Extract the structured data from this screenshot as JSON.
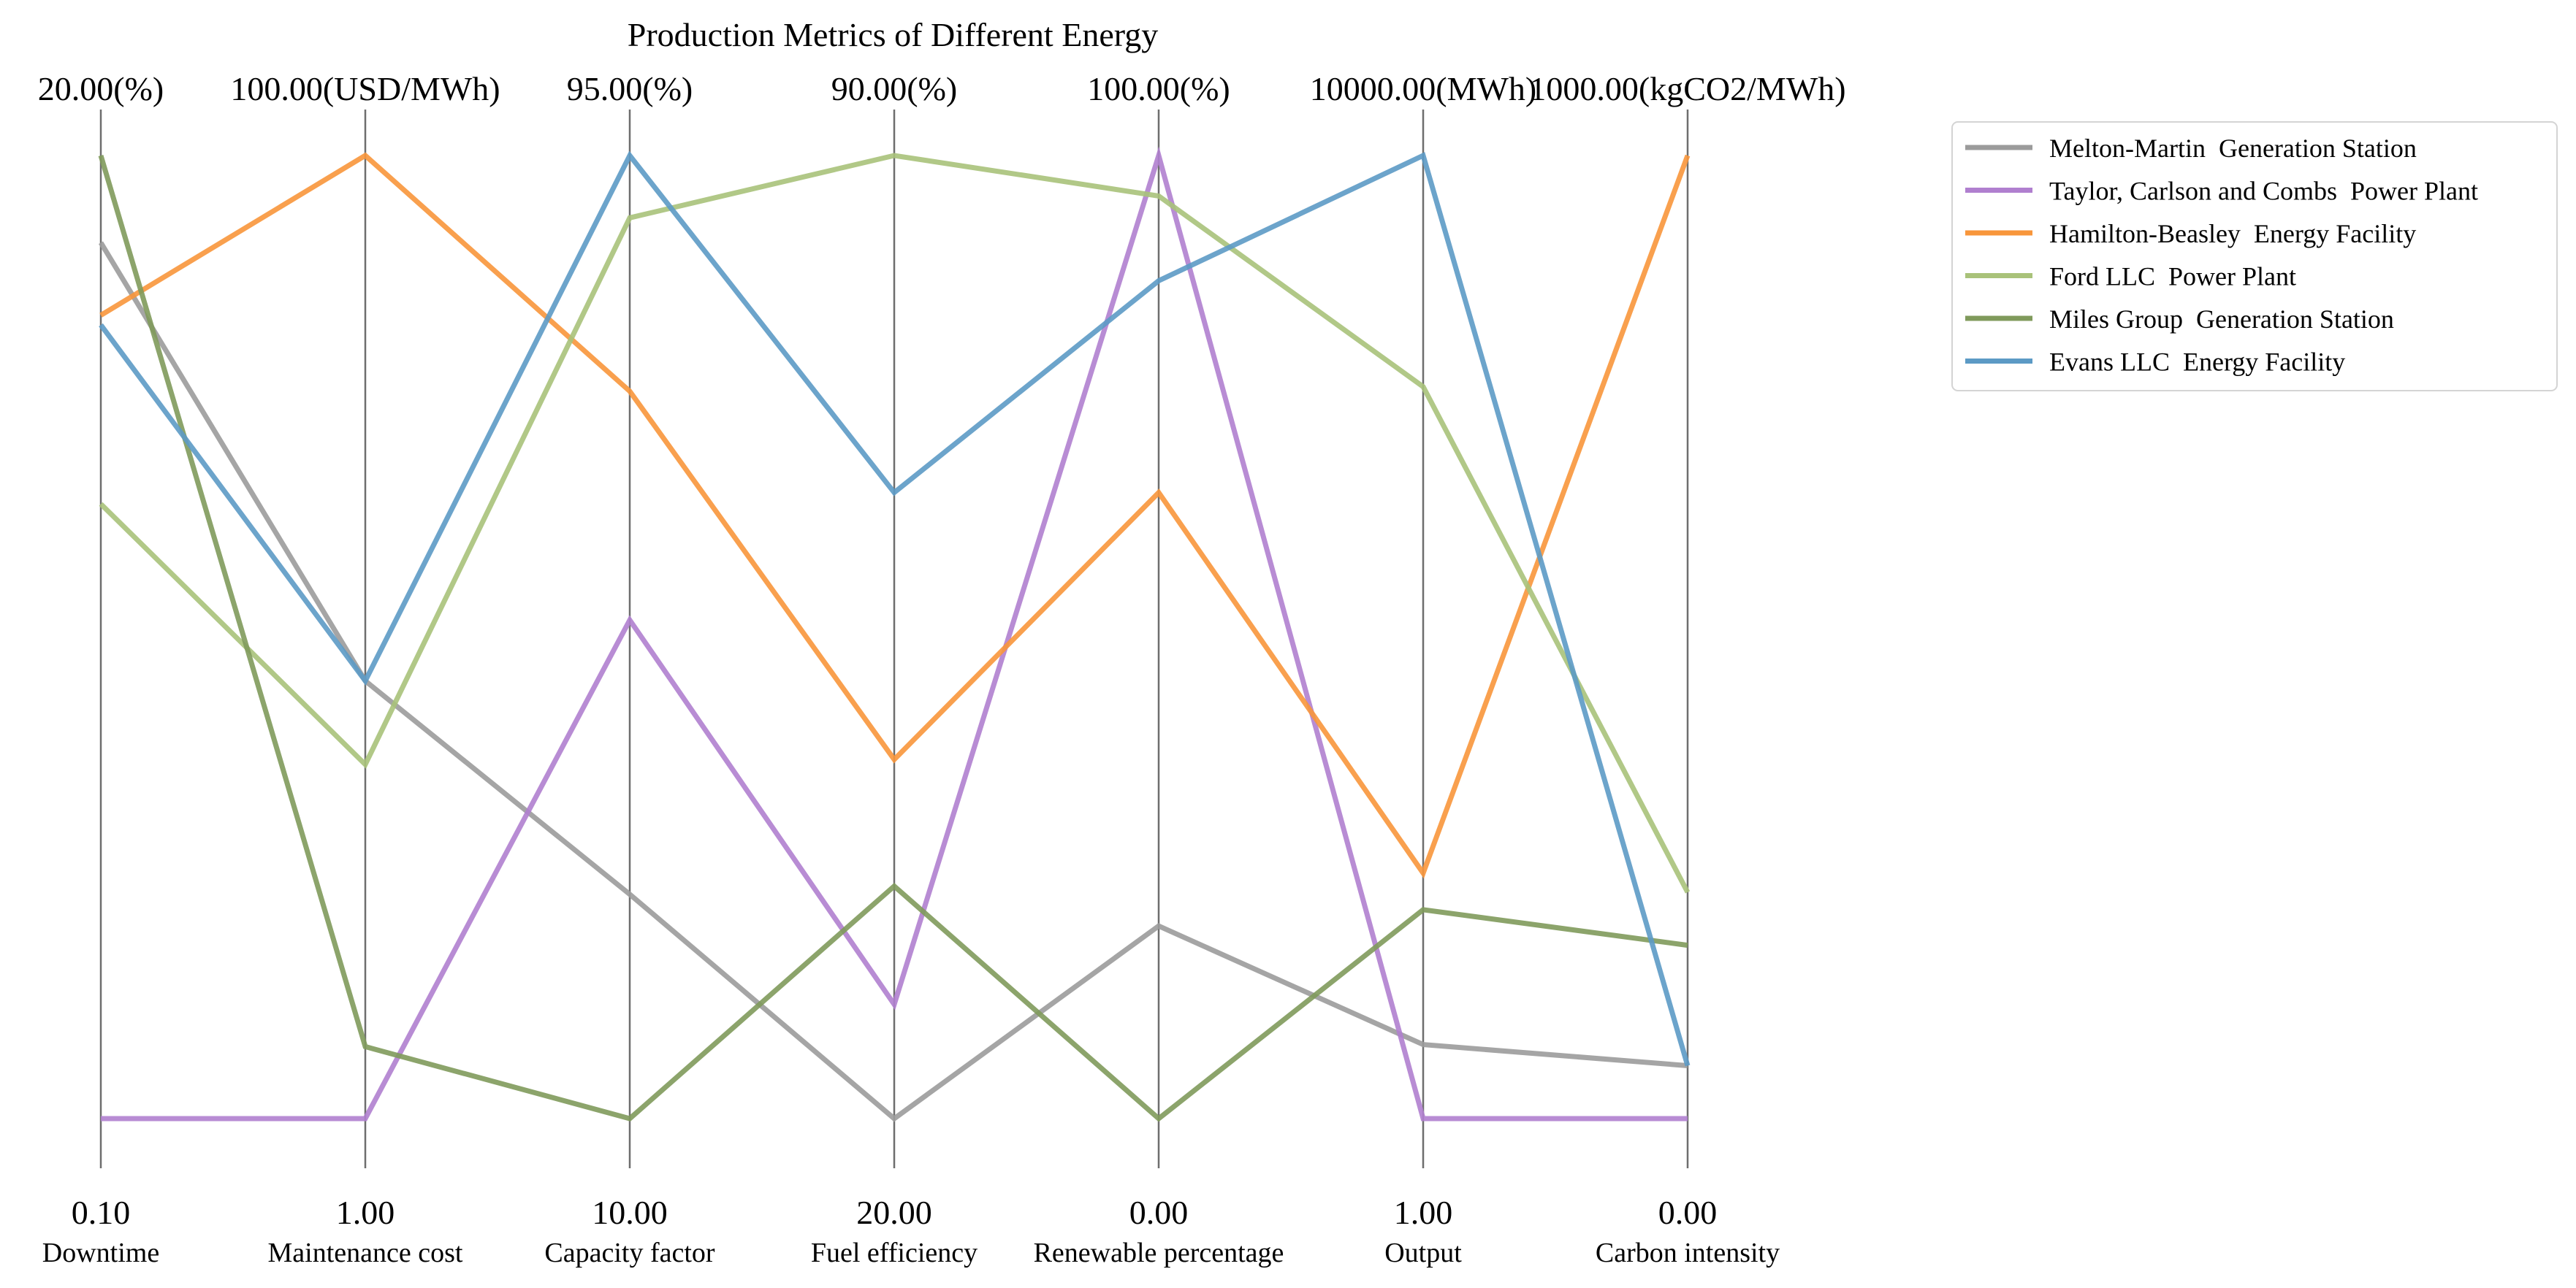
{
  "chart_data": {
    "type": "parallel_coordinates",
    "title": "Production Metrics of Different Energy",
    "axes": [
      {
        "name": "Downtime",
        "unit": "(%)",
        "min": 0.1,
        "max": 20.0,
        "min_label": "0.10",
        "max_label": "20.00(%)"
      },
      {
        "name": "Maintenance cost",
        "unit": "(USD/MWh)",
        "min": 1.0,
        "max": 100.0,
        "min_label": "1.00",
        "max_label": "100.00(USD/MWh)"
      },
      {
        "name": "Capacity factor",
        "unit": "(%)",
        "min": 10.0,
        "max": 95.0,
        "min_label": "10.00",
        "max_label": "95.00(%)"
      },
      {
        "name": "Fuel efficiency",
        "unit": "(%)",
        "min": 20.0,
        "max": 90.0,
        "min_label": "20.00",
        "max_label": "90.00(%)"
      },
      {
        "name": "Renewable percentage",
        "unit": "(%)",
        "min": 0.0,
        "max": 100.0,
        "min_label": "0.00",
        "max_label": "100.00(%)"
      },
      {
        "name": "Output",
        "unit": "(MWh)",
        "min": 1.0,
        "max": 10000.0,
        "min_label": "1.00",
        "max_label": "10000.00(MWh)"
      },
      {
        "name": "Carbon intensity",
        "unit": "(kgCO2/MWh)",
        "min": 0.0,
        "max": 1000.0,
        "min_label": "0.00",
        "max_label": "1000.00(kgCO2/MWh)"
      }
    ],
    "series": [
      {
        "name": "Melton-Martin  Generation Station",
        "color": "#9b9b9b",
        "values": [
          18.2,
          46.0,
          29.8,
          20.0,
          20.0,
          770.0,
          55.0
        ]
      },
      {
        "name": "Taylor, Carlson and Combs  Power Plant",
        "color": "#b07fcf",
        "values": [
          0.1,
          1.0,
          54.0,
          28.3,
          100.0,
          1.0,
          0.0
        ]
      },
      {
        "name": "Hamilton-Beasley  Energy Facility",
        "color": "#f8963b",
        "values": [
          16.7,
          100.0,
          74.2,
          46.1,
          65.0,
          2550.0,
          1000.0
        ]
      },
      {
        "name": "Ford LLC  Power Plant",
        "color": "#a9c27a",
        "values": [
          12.8,
          37.4,
          89.5,
          90.0,
          95.8,
          7600.0,
          235.0
        ]
      },
      {
        "name": "Miles Group  Generation Station",
        "color": "#7f9a5b",
        "values": [
          20.0,
          8.4,
          10.0,
          36.9,
          0.0,
          2170.0,
          180.0
        ]
      },
      {
        "name": "Evans LLC  Energy Facility",
        "color": "#5c9ac5",
        "values": [
          16.5,
          46.0,
          95.0,
          65.5,
          87.0,
          10000.0,
          55.0
        ]
      }
    ],
    "legend_position": "outside-right"
  }
}
